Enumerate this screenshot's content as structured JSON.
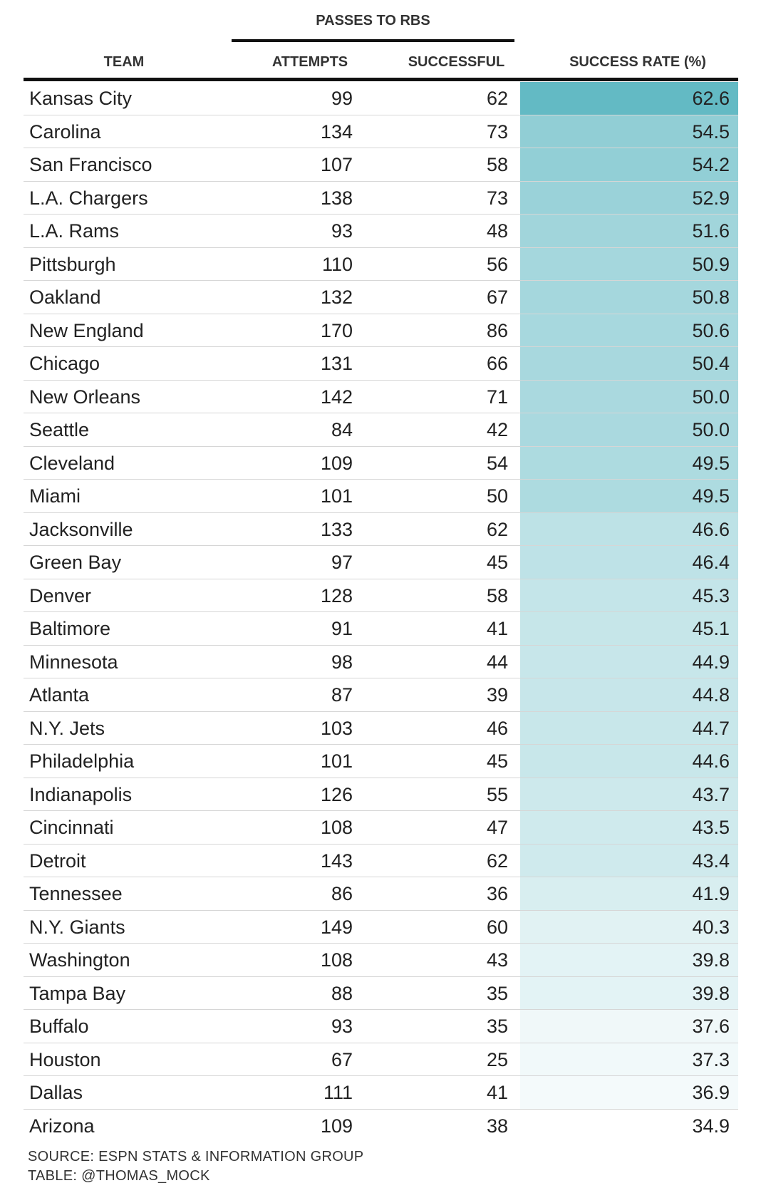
{
  "chart_data": {
    "type": "table",
    "spanner": "PASSES TO RBS",
    "columns": [
      "TEAM",
      "ATTEMPTS",
      "SUCCESSFUL",
      "SUCCESS RATE (%)"
    ],
    "rows": [
      {
        "team": "Kansas City",
        "attempts": "99",
        "successful": "62",
        "rate": "62.6"
      },
      {
        "team": "Carolina",
        "attempts": "134",
        "successful": "73",
        "rate": "54.5"
      },
      {
        "team": "San Francisco",
        "attempts": "107",
        "successful": "58",
        "rate": "54.2"
      },
      {
        "team": "L.A. Chargers",
        "attempts": "138",
        "successful": "73",
        "rate": "52.9"
      },
      {
        "team": "L.A. Rams",
        "attempts": "93",
        "successful": "48",
        "rate": "51.6"
      },
      {
        "team": "Pittsburgh",
        "attempts": "110",
        "successful": "56",
        "rate": "50.9"
      },
      {
        "team": "Oakland",
        "attempts": "132",
        "successful": "67",
        "rate": "50.8"
      },
      {
        "team": "New England",
        "attempts": "170",
        "successful": "86",
        "rate": "50.6"
      },
      {
        "team": "Chicago",
        "attempts": "131",
        "successful": "66",
        "rate": "50.4"
      },
      {
        "team": "New Orleans",
        "attempts": "142",
        "successful": "71",
        "rate": "50.0"
      },
      {
        "team": "Seattle",
        "attempts": "84",
        "successful": "42",
        "rate": "50.0"
      },
      {
        "team": "Cleveland",
        "attempts": "109",
        "successful": "54",
        "rate": "49.5"
      },
      {
        "team": "Miami",
        "attempts": "101",
        "successful": "50",
        "rate": "49.5"
      },
      {
        "team": "Jacksonville",
        "attempts": "133",
        "successful": "62",
        "rate": "46.6"
      },
      {
        "team": "Green Bay",
        "attempts": "97",
        "successful": "45",
        "rate": "46.4"
      },
      {
        "team": "Denver",
        "attempts": "128",
        "successful": "58",
        "rate": "45.3"
      },
      {
        "team": "Baltimore",
        "attempts": "91",
        "successful": "41",
        "rate": "45.1"
      },
      {
        "team": "Minnesota",
        "attempts": "98",
        "successful": "44",
        "rate": "44.9"
      },
      {
        "team": "Atlanta",
        "attempts": "87",
        "successful": "39",
        "rate": "44.8"
      },
      {
        "team": "N.Y. Jets",
        "attempts": "103",
        "successful": "46",
        "rate": "44.7"
      },
      {
        "team": "Philadelphia",
        "attempts": "101",
        "successful": "45",
        "rate": "44.6"
      },
      {
        "team": "Indianapolis",
        "attempts": "126",
        "successful": "55",
        "rate": "43.7"
      },
      {
        "team": "Cincinnati",
        "attempts": "108",
        "successful": "47",
        "rate": "43.5"
      },
      {
        "team": "Detroit",
        "attempts": "143",
        "successful": "62",
        "rate": "43.4"
      },
      {
        "team": "Tennessee",
        "attempts": "86",
        "successful": "36",
        "rate": "41.9"
      },
      {
        "team": "N.Y. Giants",
        "attempts": "149",
        "successful": "60",
        "rate": "40.3"
      },
      {
        "team": "Washington",
        "attempts": "108",
        "successful": "43",
        "rate": "39.8"
      },
      {
        "team": "Tampa Bay",
        "attempts": "88",
        "successful": "35",
        "rate": "39.8"
      },
      {
        "team": "Buffalo",
        "attempts": "93",
        "successful": "35",
        "rate": "37.6"
      },
      {
        "team": "Houston",
        "attempts": "67",
        "successful": "25",
        "rate": "37.3"
      },
      {
        "team": "Dallas",
        "attempts": "111",
        "successful": "41",
        "rate": "36.9"
      },
      {
        "team": "Arizona",
        "attempts": "109",
        "successful": "38",
        "rate": "34.9"
      }
    ],
    "color_scale": {
      "low": "#ffffff",
      "high": "#63bac4",
      "domain": [
        34.9,
        62.6
      ]
    }
  },
  "footer": {
    "source": "SOURCE: ESPN STATS & INFORMATION GROUP",
    "credit": "TABLE: @THOMAS_MOCK"
  }
}
